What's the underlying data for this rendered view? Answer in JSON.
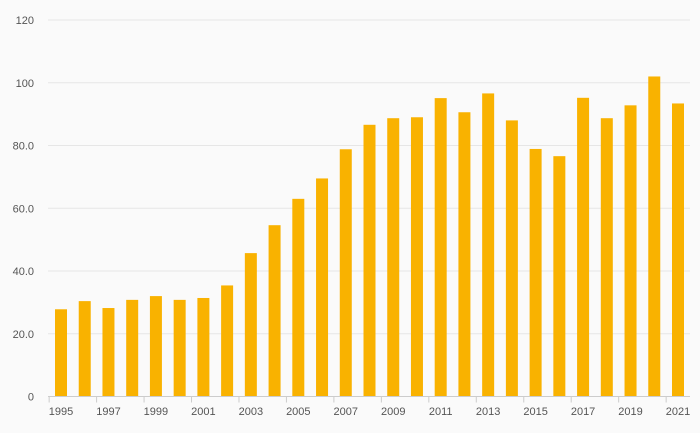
{
  "chart_data": {
    "type": "bar",
    "title": "",
    "xlabel": "",
    "ylabel": "",
    "ylim": [
      0,
      120
    ],
    "y_ticks": [
      {
        "value": 0,
        "label": "0"
      },
      {
        "value": 20,
        "label": "20.0"
      },
      {
        "value": 40,
        "label": "40.0"
      },
      {
        "value": 60,
        "label": "60.0"
      },
      {
        "value": 80,
        "label": "80.0"
      },
      {
        "value": 100,
        "label": "100"
      },
      {
        "value": 120,
        "label": "120"
      }
    ],
    "categories": [
      "1995",
      "1996",
      "1997",
      "1998",
      "1999",
      "2000",
      "2001",
      "2002",
      "2003",
      "2004",
      "2005",
      "2006",
      "2007",
      "2008",
      "2009",
      "2010",
      "2011",
      "2012",
      "2013",
      "2014",
      "2015",
      "2016",
      "2017",
      "2018",
      "2019",
      "2020",
      "2021"
    ],
    "x_tick_labels": [
      "1995",
      "1997",
      "1999",
      "2001",
      "2003",
      "2005",
      "2007",
      "2009",
      "2011",
      "2013",
      "2015",
      "2017",
      "2019",
      "2021"
    ],
    "values": [
      27.8,
      30.4,
      28.2,
      30.8,
      32.0,
      30.8,
      31.4,
      35.4,
      45.7,
      54.6,
      63.0,
      69.5,
      78.8,
      86.6,
      88.7,
      89.0,
      95.1,
      90.6,
      96.6,
      88.0,
      78.9,
      76.6,
      95.2,
      88.7,
      92.8,
      102.0,
      93.4
    ],
    "bar_color": "#f9b200",
    "grid": true,
    "gridline_color": "#e6e6e6",
    "legend": "none"
  }
}
